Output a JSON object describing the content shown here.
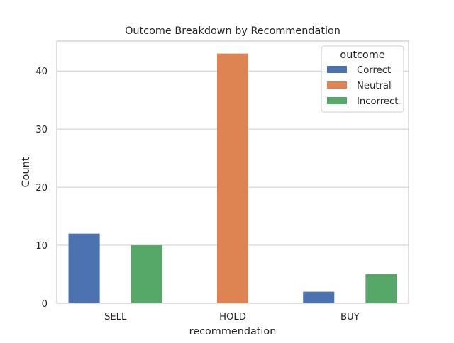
{
  "chart_data": {
    "type": "bar",
    "title": "Outcome Breakdown by Recommendation",
    "xlabel": "recommendation",
    "ylabel": "Count",
    "categories": [
      "SELL",
      "HOLD",
      "BUY"
    ],
    "series": [
      {
        "name": "Correct",
        "color": "#4c72b0",
        "values": [
          12,
          0,
          2
        ]
      },
      {
        "name": "Neutral",
        "color": "#dd8452",
        "values": [
          0,
          43,
          0
        ]
      },
      {
        "name": "Incorrect",
        "color": "#55a868",
        "values": [
          10,
          0,
          5
        ]
      }
    ],
    "ylim": [
      0,
      45.15
    ],
    "yticks": [
      0,
      10,
      20,
      30,
      40
    ],
    "grid": true,
    "legend": {
      "title": "outcome",
      "placement": "top-right"
    }
  }
}
